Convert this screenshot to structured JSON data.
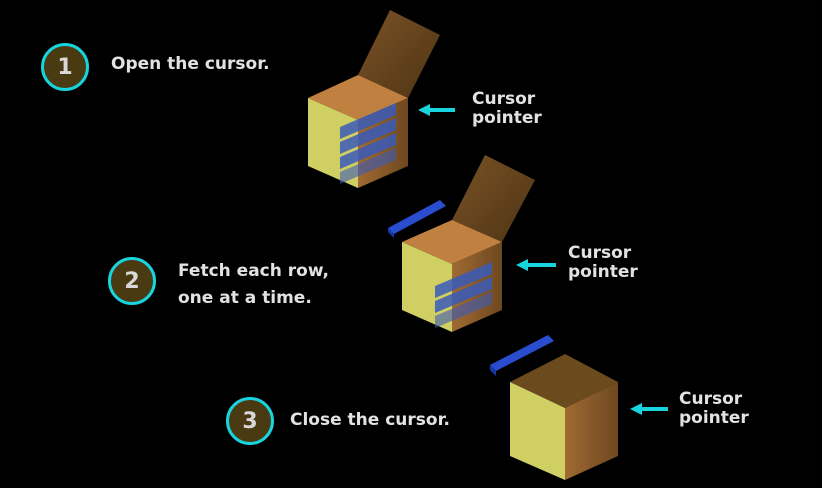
{
  "steps": [
    {
      "number": "1",
      "text": "Open the cursor."
    },
    {
      "number": "2",
      "text": "Fetch each row,\none at a time."
    },
    {
      "number": "3",
      "text": "Close the cursor."
    }
  ],
  "pointer_label": "Cursor\npointer",
  "colors": {
    "background": "#000000",
    "circle_border": "#18d4de",
    "circle_fill": "#4a3a12",
    "arrow": "#18d4de",
    "box_front": "#cfcf63",
    "box_side": "#8a5a2a",
    "box_lid": "#6b4a1e",
    "row_blue": "#2a4ccf"
  },
  "icons": [
    "open-box-icon",
    "row-bar-icon",
    "closed-box-icon",
    "arrow-left-icon"
  ]
}
